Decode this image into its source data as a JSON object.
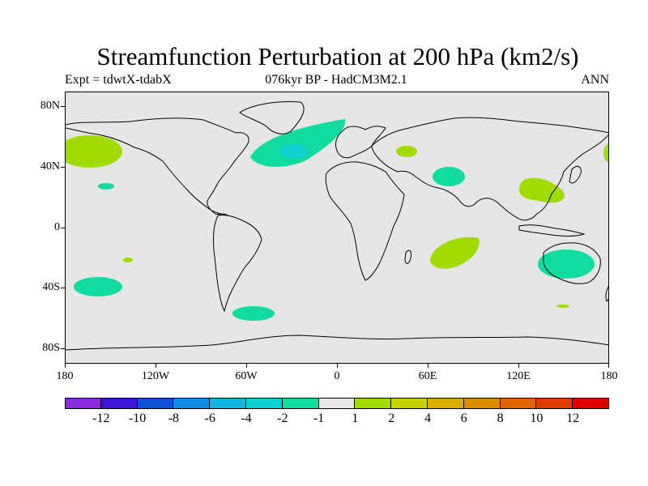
{
  "header": {
    "title": "Streamfunction Perturbation at 200 hPa (km2/s)",
    "left": "Expt = tdwtX-tdabX",
    "center": "076kyr BP - HadCM3M2.1",
    "right": "ANN"
  },
  "axes": {
    "lat_labels": [
      "80N",
      "40N",
      "0",
      "40S",
      "80S"
    ],
    "lon_labels": [
      "180",
      "120W",
      "60W",
      "0",
      "60E",
      "120E",
      "180"
    ]
  },
  "legend": {
    "colors": [
      "#8a2be2",
      "#3c14d6",
      "#1050d6",
      "#108ce6",
      "#10b4dc",
      "#10d0d0",
      "#10dca0",
      "#e6e6e6",
      "#a0dc00",
      "#c8d200",
      "#d8ac00",
      "#e08c00",
      "#e06400",
      "#e03c00",
      "#e00000"
    ],
    "labels": [
      "-12",
      "-10",
      "-8",
      "-6",
      "-4",
      "-2",
      "-1",
      "1",
      "2",
      "4",
      "6",
      "8",
      "10",
      "12"
    ]
  },
  "colors": {
    "positive": "#a0dc00",
    "negative_light": "#10dca0",
    "negative_medium": "#10d0d0",
    "land_outline": "#000000",
    "background": "#e6e6e6"
  }
}
